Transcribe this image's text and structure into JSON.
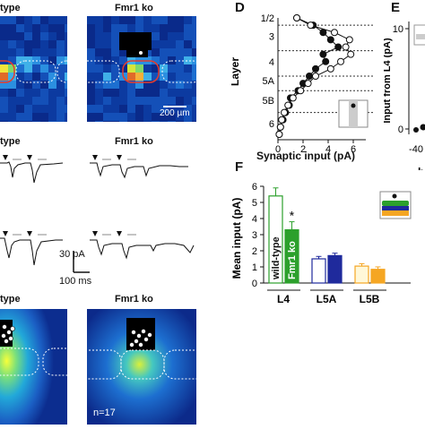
{
  "panels": {
    "d": "D",
    "e": "E",
    "f": "F"
  },
  "column_titles": {
    "top_left": "type",
    "top_right": "Fmr1 ko",
    "mid_left": "type",
    "mid_right": "Fmr1 ko",
    "bottom_left": "type",
    "bottom_right": "Fmr1 ko"
  },
  "scale_bars": {
    "map": "200 µm",
    "trace_current": "30 pA",
    "trace_time": "100 ms"
  },
  "counts": {
    "n": "n=17"
  },
  "panel_e": {
    "ylabel": "Input from L4 (pA)",
    "ytick_top": "10",
    "ytick_bottom": "0",
    "xtick": "-40",
    "xlabel_fragment": "b"
  },
  "colors": {
    "wildtype": "#ffffff",
    "fmr1ko": "#2ca02c",
    "l5a_wt": "#ffffff",
    "l5a_ko": "#1f2a9c",
    "l5b_wt": "#fff8d8",
    "l5b_ko": "#f5a623",
    "heat_bg": "#0a2a8a"
  },
  "chart_data": [
    {
      "type": "line",
      "panel": "D",
      "xlabel": "Synaptic input (pA)",
      "ylabel": "Layer",
      "xlim": [
        0,
        7
      ],
      "xticks": [
        "0",
        "2",
        "4",
        "6"
      ],
      "layer_labels": [
        "1/2",
        "3",
        "4",
        "5A",
        "5B",
        "6"
      ],
      "series": [
        {
          "marker": "filled",
          "x": [
            1.5,
            2.8,
            3.6,
            4.2,
            4.8,
            3.6,
            3.8,
            3.0,
            2.5,
            2.0,
            1.6,
            1.0,
            0.9,
            0.6,
            0.4,
            0.2,
            0.1
          ],
          "depth": [
            1,
            2,
            3,
            4,
            5,
            6,
            7,
            8,
            9,
            10,
            11,
            12,
            13,
            14,
            15,
            16,
            17
          ]
        },
        {
          "marker": "open",
          "x": [
            1.5,
            2.6,
            4.5,
            5.7,
            5.4,
            5.8,
            5.0,
            4.2,
            3.0,
            2.4,
            1.8,
            1.2,
            0.8,
            0.5,
            0.3,
            0.2,
            0.1
          ],
          "depth": [
            1,
            2,
            3,
            4,
            5,
            6,
            7,
            8,
            9,
            10,
            11,
            12,
            13,
            14,
            15,
            16,
            17
          ]
        }
      ]
    },
    {
      "type": "bar",
      "panel": "F",
      "ylabel": "Mean input (pA)",
      "ylim": [
        0,
        6
      ],
      "yticks": [
        "0",
        "1",
        "2",
        "3",
        "4",
        "5",
        "6"
      ],
      "categories": [
        "L4",
        "L5A",
        "L5B"
      ],
      "bar_labels": [
        "wild-type",
        "Fmr1 ko"
      ],
      "significance": "*",
      "series": [
        {
          "values": [
            5.4,
            1.5,
            1.05
          ]
        },
        {
          "values": [
            3.3,
            1.7,
            0.85
          ]
        }
      ],
      "errors": [
        [
          0.5,
          0.15,
          0.15
        ],
        [
          0.5,
          0.15,
          0.15
        ]
      ]
    }
  ]
}
